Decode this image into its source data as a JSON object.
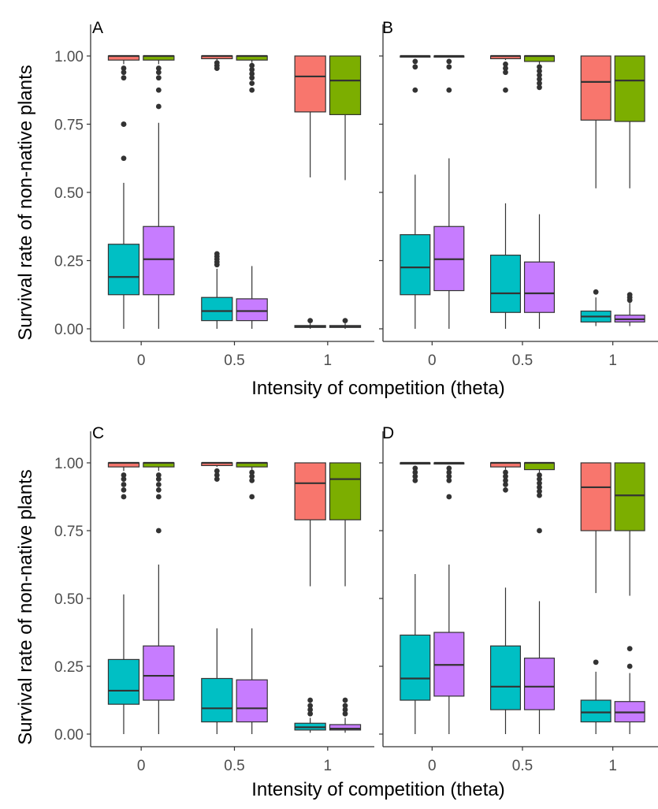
{
  "figure": {
    "y_axis_label": "Survival rate of non-native plants",
    "x_axis_label": "Intensity of competition (theta)"
  },
  "colors": {
    "series": [
      "#F8766D",
      "#7CAE00",
      "#00BFC4",
      "#C77CFF"
    ],
    "box_stroke": "#333333",
    "outlier": "#333333"
  },
  "chart_data": [
    {
      "type": "box",
      "panel": "A",
      "categories": [
        "0",
        "0.5",
        "1"
      ],
      "ylim": [
        0,
        1
      ],
      "yticks": [
        "0.00",
        "0.25",
        "0.50",
        "0.75",
        "1.00"
      ],
      "series": [
        {
          "boxes": [
            {
              "min": 0.97,
              "q1": 0.985,
              "median": 1.0,
              "q3": 1.0,
              "max": 1.0,
              "outliers": [
                0.955,
                0.94,
                0.92,
                0.75
              ]
            },
            {
              "min": 0.985,
              "q1": 0.99,
              "median": 1.0,
              "q3": 1.0,
              "max": 1.0,
              "outliers": [
                0.975,
                0.965,
                0.955
              ]
            },
            {
              "min": 0.555,
              "q1": 0.795,
              "median": 0.925,
              "q3": 1.0,
              "max": 1.0,
              "outliers": []
            }
          ]
        },
        {
          "boxes": [
            {
              "min": 0.97,
              "q1": 0.985,
              "median": 1.0,
              "q3": 1.0,
              "max": 1.0,
              "outliers": [
                0.955,
                0.94,
                0.92,
                0.875,
                0.815
              ]
            },
            {
              "min": 0.975,
              "q1": 0.985,
              "median": 1.0,
              "q3": 1.0,
              "max": 1.0,
              "outliers": [
                0.965,
                0.95,
                0.935,
                0.92,
                0.9,
                0.875
              ]
            },
            {
              "min": 0.545,
              "q1": 0.785,
              "median": 0.91,
              "q3": 1.0,
              "max": 1.0,
              "outliers": []
            }
          ]
        },
        {
          "boxes": [
            {
              "min": 0.0,
              "q1": 0.125,
              "median": 0.19,
              "q3": 0.31,
              "max": 0.535,
              "outliers": [
                0.625,
                0.75
              ]
            },
            {
              "min": 0.0,
              "q1": 0.03,
              "median": 0.065,
              "q3": 0.115,
              "max": 0.22,
              "outliers": [
                0.235,
                0.245,
                0.255,
                0.265,
                0.275
              ]
            },
            {
              "min": 0.0,
              "q1": 0.005,
              "median": 0.008,
              "q3": 0.012,
              "max": 0.02,
              "outliers": [
                0.03
              ]
            }
          ]
        },
        {
          "boxes": [
            {
              "min": 0.0,
              "q1": 0.125,
              "median": 0.255,
              "q3": 0.375,
              "max": 0.755,
              "outliers": []
            },
            {
              "min": 0.0,
              "q1": 0.03,
              "median": 0.065,
              "q3": 0.11,
              "max": 0.23,
              "outliers": []
            },
            {
              "min": 0.0,
              "q1": 0.005,
              "median": 0.008,
              "q3": 0.012,
              "max": 0.02,
              "outliers": [
                0.03
              ]
            }
          ]
        }
      ]
    },
    {
      "type": "box",
      "panel": "B",
      "categories": [
        "0",
        "0.5",
        "1"
      ],
      "ylim": [
        0,
        1
      ],
      "yticks": [
        "0.00",
        "0.25",
        "0.50",
        "0.75",
        "1.00"
      ],
      "series": [
        {
          "boxes": [
            {
              "min": 1.0,
              "q1": 1.0,
              "median": 1.0,
              "q3": 1.0,
              "max": 1.0,
              "outliers": [
                0.98,
                0.96,
                0.875
              ]
            },
            {
              "min": 0.985,
              "q1": 0.99,
              "median": 1.0,
              "q3": 1.0,
              "max": 1.0,
              "outliers": [
                0.97,
                0.955,
                0.94,
                0.875
              ]
            },
            {
              "min": 0.515,
              "q1": 0.765,
              "median": 0.905,
              "q3": 1.0,
              "max": 1.0,
              "outliers": []
            }
          ]
        },
        {
          "boxes": [
            {
              "min": 1.0,
              "q1": 1.0,
              "median": 1.0,
              "q3": 1.0,
              "max": 1.0,
              "outliers": [
                0.98,
                0.96,
                0.875
              ]
            },
            {
              "min": 0.97,
              "q1": 0.98,
              "median": 1.0,
              "q3": 1.0,
              "max": 1.0,
              "outliers": [
                0.96,
                0.945,
                0.93,
                0.915,
                0.9,
                0.885
              ]
            },
            {
              "min": 0.515,
              "q1": 0.76,
              "median": 0.91,
              "q3": 1.0,
              "max": 1.0,
              "outliers": []
            }
          ]
        },
        {
          "boxes": [
            {
              "min": 0.0,
              "q1": 0.125,
              "median": 0.225,
              "q3": 0.345,
              "max": 0.565,
              "outliers": []
            },
            {
              "min": 0.0,
              "q1": 0.06,
              "median": 0.13,
              "q3": 0.27,
              "max": 0.46,
              "outliers": []
            },
            {
              "min": 0.01,
              "q1": 0.025,
              "median": 0.045,
              "q3": 0.065,
              "max": 0.115,
              "outliers": [
                0.135
              ]
            }
          ]
        },
        {
          "boxes": [
            {
              "min": 0.0,
              "q1": 0.14,
              "median": 0.255,
              "q3": 0.375,
              "max": 0.625,
              "outliers": []
            },
            {
              "min": 0.0,
              "q1": 0.06,
              "median": 0.13,
              "q3": 0.245,
              "max": 0.42,
              "outliers": []
            },
            {
              "min": 0.01,
              "q1": 0.025,
              "median": 0.035,
              "q3": 0.05,
              "max": 0.095,
              "outliers": [
                0.105,
                0.115,
                0.125
              ]
            }
          ]
        }
      ]
    },
    {
      "type": "box",
      "panel": "C",
      "categories": [
        "0",
        "0.5",
        "1"
      ],
      "ylim": [
        0,
        1
      ],
      "yticks": [
        "0.00",
        "0.25",
        "0.50",
        "0.75",
        "1.00"
      ],
      "series": [
        {
          "boxes": [
            {
              "min": 0.97,
              "q1": 0.985,
              "median": 1.0,
              "q3": 1.0,
              "max": 1.0,
              "outliers": [
                0.955,
                0.94,
                0.92,
                0.9,
                0.875
              ]
            },
            {
              "min": 0.985,
              "q1": 0.99,
              "median": 1.0,
              "q3": 1.0,
              "max": 1.0,
              "outliers": [
                0.97,
                0.955,
                0.94
              ]
            },
            {
              "min": 0.545,
              "q1": 0.79,
              "median": 0.925,
              "q3": 1.0,
              "max": 1.0,
              "outliers": []
            }
          ]
        },
        {
          "boxes": [
            {
              "min": 0.97,
              "q1": 0.985,
              "median": 1.0,
              "q3": 1.0,
              "max": 1.0,
              "outliers": [
                0.955,
                0.94,
                0.92,
                0.9,
                0.875,
                0.75
              ]
            },
            {
              "min": 0.975,
              "q1": 0.985,
              "median": 1.0,
              "q3": 1.0,
              "max": 1.0,
              "outliers": [
                0.965,
                0.95,
                0.935,
                0.875
              ]
            },
            {
              "min": 0.545,
              "q1": 0.79,
              "median": 0.94,
              "q3": 1.0,
              "max": 1.0,
              "outliers": []
            }
          ]
        },
        {
          "boxes": [
            {
              "min": 0.0,
              "q1": 0.11,
              "median": 0.16,
              "q3": 0.275,
              "max": 0.515,
              "outliers": []
            },
            {
              "min": 0.0,
              "q1": 0.045,
              "median": 0.095,
              "q3": 0.205,
              "max": 0.39,
              "outliers": []
            },
            {
              "min": 0.005,
              "q1": 0.015,
              "median": 0.025,
              "q3": 0.04,
              "max": 0.06,
              "outliers": [
                0.075,
                0.09,
                0.105,
                0.125
              ]
            }
          ]
        },
        {
          "boxes": [
            {
              "min": 0.0,
              "q1": 0.125,
              "median": 0.215,
              "q3": 0.325,
              "max": 0.625,
              "outliers": []
            },
            {
              "min": 0.0,
              "q1": 0.045,
              "median": 0.095,
              "q3": 0.2,
              "max": 0.39,
              "outliers": []
            },
            {
              "min": 0.005,
              "q1": 0.015,
              "median": 0.02,
              "q3": 0.035,
              "max": 0.06,
              "outliers": [
                0.075,
                0.09,
                0.105,
                0.125
              ]
            }
          ]
        }
      ]
    },
    {
      "type": "box",
      "panel": "D",
      "categories": [
        "0",
        "0.5",
        "1"
      ],
      "ylim": [
        0,
        1
      ],
      "yticks": [
        "0.00",
        "0.25",
        "0.50",
        "0.75",
        "1.00"
      ],
      "series": [
        {
          "boxes": [
            {
              "min": 1.0,
              "q1": 1.0,
              "median": 1.0,
              "q3": 1.0,
              "max": 1.0,
              "outliers": [
                0.98,
                0.965,
                0.95,
                0.935
              ]
            },
            {
              "min": 0.975,
              "q1": 0.985,
              "median": 1.0,
              "q3": 1.0,
              "max": 1.0,
              "outliers": [
                0.965,
                0.95,
                0.935,
                0.92,
                0.9
              ]
            },
            {
              "min": 0.52,
              "q1": 0.75,
              "median": 0.91,
              "q3": 1.0,
              "max": 1.0,
              "outliers": []
            }
          ]
        },
        {
          "boxes": [
            {
              "min": 1.0,
              "q1": 1.0,
              "median": 1.0,
              "q3": 1.0,
              "max": 1.0,
              "outliers": [
                0.98,
                0.965,
                0.95,
                0.935,
                0.875
              ]
            },
            {
              "min": 0.965,
              "q1": 0.975,
              "median": 1.0,
              "q3": 1.0,
              "max": 1.0,
              "outliers": [
                0.955,
                0.94,
                0.925,
                0.91,
                0.895,
                0.88,
                0.75
              ]
            },
            {
              "min": 0.51,
              "q1": 0.75,
              "median": 0.88,
              "q3": 1.0,
              "max": 1.0,
              "outliers": []
            }
          ]
        },
        {
          "boxes": [
            {
              "min": 0.0,
              "q1": 0.125,
              "median": 0.205,
              "q3": 0.365,
              "max": 0.59,
              "outliers": []
            },
            {
              "min": 0.0,
              "q1": 0.09,
              "median": 0.175,
              "q3": 0.325,
              "max": 0.54,
              "outliers": []
            },
            {
              "min": 0.0,
              "q1": 0.045,
              "median": 0.08,
              "q3": 0.125,
              "max": 0.23,
              "outliers": [
                0.265
              ]
            }
          ]
        },
        {
          "boxes": [
            {
              "min": 0.0,
              "q1": 0.14,
              "median": 0.255,
              "q3": 0.375,
              "max": 0.625,
              "outliers": []
            },
            {
              "min": 0.0,
              "q1": 0.09,
              "median": 0.175,
              "q3": 0.28,
              "max": 0.49,
              "outliers": []
            },
            {
              "min": 0.0,
              "q1": 0.045,
              "median": 0.08,
              "q3": 0.12,
              "max": 0.225,
              "outliers": [
                0.25,
                0.315
              ]
            }
          ]
        }
      ]
    }
  ]
}
